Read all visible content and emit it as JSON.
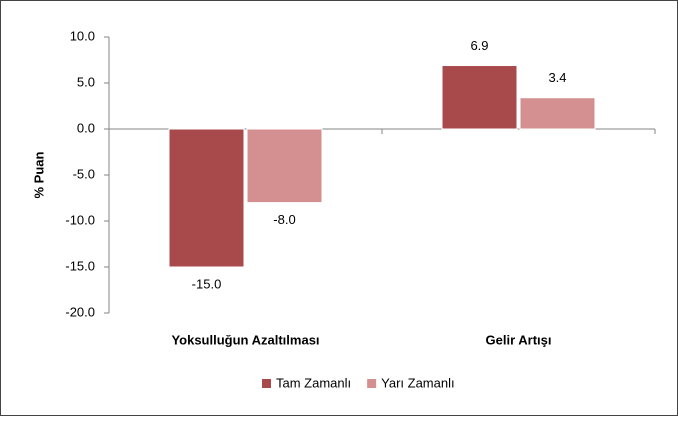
{
  "chart_data": {
    "type": "bar",
    "categories": [
      "Yoksulluğun Azaltılması",
      "Gelir Artışı"
    ],
    "series": [
      {
        "name": "Tam Zamanlı",
        "color": "#a84a4c",
        "values": [
          -15.0,
          6.9
        ],
        "value_labels": [
          "-15.0",
          "6.9"
        ]
      },
      {
        "name": "Yarı Zamanlı",
        "color": "#d49091",
        "values": [
          -8.0,
          3.4
        ],
        "value_labels": [
          "-8.0",
          "3.4"
        ]
      }
    ],
    "y_label": "% Puan",
    "ylim": [
      -20,
      10
    ],
    "yticks": [
      {
        "value": -20,
        "label": "-20.0"
      },
      {
        "value": -15,
        "label": "-15.0"
      },
      {
        "value": -10,
        "label": "-10.0"
      },
      {
        "value": -5,
        "label": "-5.0"
      },
      {
        "value": 0,
        "label": "0.0"
      },
      {
        "value": 5,
        "label": "5.0"
      },
      {
        "value": 10,
        "label": "10.0"
      }
    ],
    "legend": "bottom"
  }
}
